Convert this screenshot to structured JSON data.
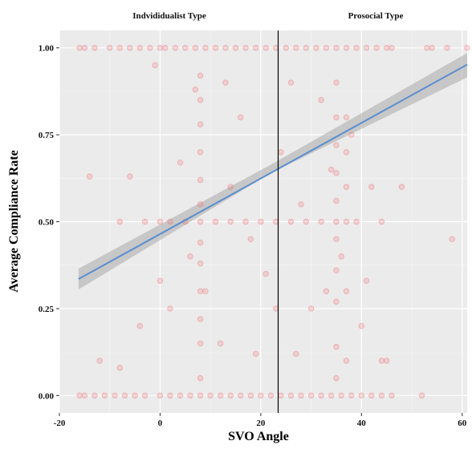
{
  "chart_data": {
    "type": "scatter",
    "xlabel": "SVO Angle",
    "ylabel": "Average Compliance Rate",
    "xlim": [
      -20,
      61
    ],
    "ylim": [
      -0.05,
      1.05
    ],
    "x_ticks": [
      -20,
      0,
      20,
      40,
      60
    ],
    "x_tick_labels": [
      "-20",
      "0",
      "20",
      "40",
      "60"
    ],
    "y_ticks": [
      0.0,
      0.25,
      0.5,
      0.75,
      1.0
    ],
    "y_tick_labels": [
      "0.00",
      "0.25",
      "0.50",
      "0.75",
      "1.00"
    ],
    "grid": true,
    "background_color": "#ebebeb",
    "point_color": "#f06a6f",
    "fit_line_color": "#5b8fcf",
    "confidence_band_color": "#a9a9a9",
    "threshold_x": 23.45,
    "region_labels": [
      "Indvididualist Type",
      "Prosocial Type"
    ],
    "fit_line": {
      "x": [
        -16.2,
        61
      ],
      "y": [
        0.335,
        0.952
      ]
    },
    "confidence_band": {
      "x": [
        -16.2,
        22,
        61
      ],
      "lower": [
        0.305,
        0.64,
        0.915
      ],
      "upper": [
        0.365,
        0.664,
        0.985
      ]
    },
    "series": [
      {
        "points": [
          [
            -16,
            0
          ],
          [
            -15,
            0
          ],
          [
            -13,
            0
          ],
          [
            -11,
            0
          ],
          [
            -9,
            0
          ],
          [
            -7,
            0
          ],
          [
            -5,
            0
          ],
          [
            -3,
            0
          ],
          [
            0,
            0
          ],
          [
            2,
            0
          ],
          [
            4,
            0
          ],
          [
            6,
            0
          ],
          [
            8,
            0
          ],
          [
            10,
            0
          ],
          [
            12,
            0
          ],
          [
            14,
            0
          ],
          [
            16,
            0
          ],
          [
            18,
            0
          ],
          [
            20,
            0
          ],
          [
            22,
            0
          ],
          [
            24,
            0
          ],
          [
            26,
            0
          ],
          [
            28,
            0
          ],
          [
            30,
            0
          ],
          [
            32,
            0
          ],
          [
            34,
            0
          ],
          [
            36,
            0
          ],
          [
            38,
            0
          ],
          [
            40,
            0
          ],
          [
            42,
            0
          ],
          [
            44,
            0
          ],
          [
            46,
            0
          ],
          [
            52,
            0
          ],
          [
            -16,
            1
          ],
          [
            -15,
            1
          ],
          [
            -13,
            1
          ],
          [
            -10,
            1
          ],
          [
            -8,
            1
          ],
          [
            -6,
            1
          ],
          [
            -4,
            1
          ],
          [
            -2,
            1
          ],
          [
            0,
            1
          ],
          [
            1,
            1
          ],
          [
            3,
            1
          ],
          [
            5,
            1
          ],
          [
            7,
            1
          ],
          [
            9,
            1
          ],
          [
            11,
            1
          ],
          [
            13,
            1
          ],
          [
            15,
            1
          ],
          [
            17,
            1
          ],
          [
            19,
            1
          ],
          [
            21,
            1
          ],
          [
            23,
            1
          ],
          [
            25,
            1
          ],
          [
            27,
            1
          ],
          [
            29,
            1
          ],
          [
            31,
            1
          ],
          [
            33,
            1
          ],
          [
            35,
            1
          ],
          [
            37,
            1
          ],
          [
            39,
            1
          ],
          [
            41,
            1
          ],
          [
            43,
            1
          ],
          [
            45,
            1
          ],
          [
            46,
            1
          ],
          [
            53,
            1
          ],
          [
            54,
            1
          ],
          [
            57,
            1
          ],
          [
            61,
            1
          ],
          [
            -8,
            0.5
          ],
          [
            -3,
            0.5
          ],
          [
            0,
            0.5
          ],
          [
            2,
            0.5
          ],
          [
            5,
            0.5
          ],
          [
            8,
            0.5
          ],
          [
            11,
            0.5
          ],
          [
            14,
            0.5
          ],
          [
            17,
            0.5
          ],
          [
            20,
            0.5
          ],
          [
            23,
            0.5
          ],
          [
            26,
            0.5
          ],
          [
            29,
            0.5
          ],
          [
            32,
            0.5
          ],
          [
            35,
            0.5
          ],
          [
            37,
            0.5
          ],
          [
            39,
            0.5
          ],
          [
            44,
            0.5
          ],
          [
            -12,
            0.1
          ],
          [
            -8,
            0.08
          ],
          [
            -4,
            0.2
          ],
          [
            0,
            0.33
          ],
          [
            2,
            0.25
          ],
          [
            4,
            0.67
          ],
          [
            6,
            0.4
          ],
          [
            9,
            0.3
          ],
          [
            12,
            0.15
          ],
          [
            14,
            0.6
          ],
          [
            16,
            0.8
          ],
          [
            18,
            0.45
          ],
          [
            21,
            0.35
          ],
          [
            24,
            0.7
          ],
          [
            26,
            0.9
          ],
          [
            28,
            0.55
          ],
          [
            30,
            0.25
          ],
          [
            32,
            0.85
          ],
          [
            34,
            0.65
          ],
          [
            36,
            0.4
          ],
          [
            38,
            0.75
          ],
          [
            40,
            0.2
          ],
          [
            42,
            0.6
          ],
          [
            44,
            0.1
          ],
          [
            -6,
            0.63
          ],
          [
            -14,
            0.63
          ],
          [
            -1,
            0.95
          ],
          [
            7,
            0.88
          ],
          [
            13,
            0.9
          ],
          [
            19,
            0.12
          ],
          [
            23,
            0.25
          ],
          [
            27,
            0.12
          ],
          [
            33,
            0.3
          ],
          [
            37,
            0.8
          ],
          [
            41,
            0.33
          ],
          [
            45,
            0.1
          ],
          [
            48,
            0.6
          ],
          [
            58,
            0.45
          ],
          [
            8,
            0.05
          ],
          [
            8,
            0.15
          ],
          [
            8,
            0.22
          ],
          [
            8,
            0.3
          ],
          [
            8,
            0.38
          ],
          [
            8,
            0.44
          ],
          [
            8,
            0.55
          ],
          [
            8,
            0.62
          ],
          [
            8,
            0.7
          ],
          [
            8,
            0.78
          ],
          [
            8,
            0.85
          ],
          [
            8,
            0.92
          ],
          [
            35,
            0.05
          ],
          [
            35,
            0.14
          ],
          [
            35,
            0.27
          ],
          [
            35,
            0.36
          ],
          [
            35,
            0.45
          ],
          [
            35,
            0.56
          ],
          [
            35,
            0.64
          ],
          [
            35,
            0.72
          ],
          [
            35,
            0.8
          ],
          [
            35,
            0.9
          ],
          [
            37,
            0.1
          ],
          [
            37,
            0.3
          ],
          [
            37,
            0.6
          ],
          [
            37,
            0.7
          ]
        ]
      }
    ]
  }
}
